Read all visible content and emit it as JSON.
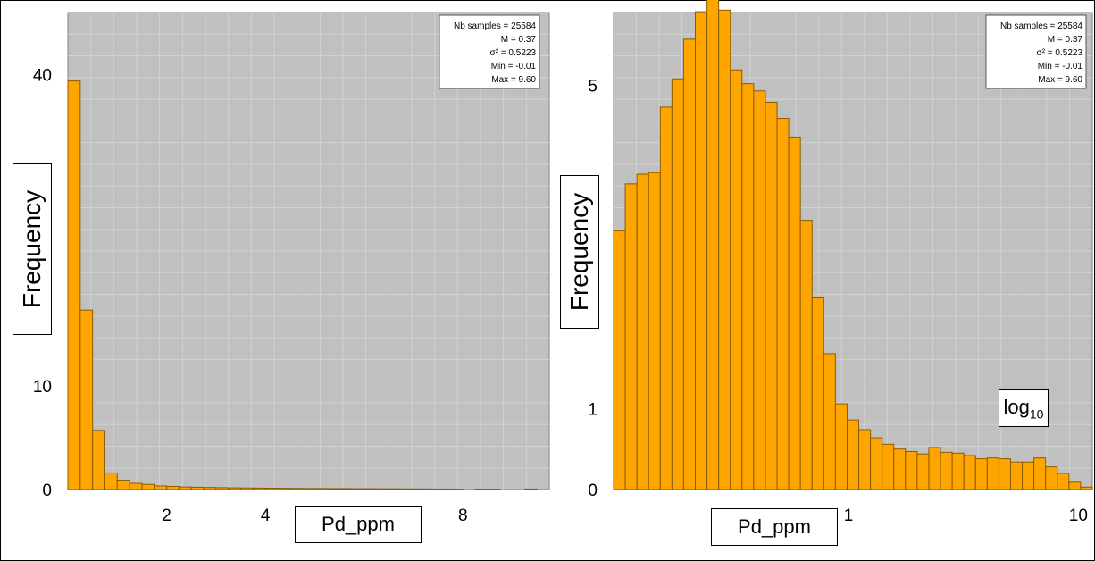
{
  "chart_data": [
    {
      "type": "bar",
      "title": "",
      "xlabel": "Pd_ppm",
      "ylabel": "Frequency",
      "x_scale": "linear",
      "xlim": [
        0,
        9.75
      ],
      "ylim": [
        0,
        46
      ],
      "x_ticks": [
        2,
        4,
        8
      ],
      "y_ticks": [
        0,
        10,
        40
      ],
      "bin_width": 0.25,
      "bin_start": 0,
      "values": [
        39.4,
        17.3,
        5.7,
        1.6,
        0.9,
        0.6,
        0.5,
        0.35,
        0.3,
        0.25,
        0.22,
        0.2,
        0.18,
        0.16,
        0.15,
        0.14,
        0.13,
        0.12,
        0.11,
        0.1,
        0.1,
        0.09,
        0.09,
        0.08,
        0.08,
        0.07,
        0.07,
        0.06,
        0.06,
        0.05,
        0.05,
        0.04,
        0,
        0.04,
        0.04,
        0,
        0,
        0.05,
        0
      ],
      "bar_color": "#ffa500",
      "grid": true,
      "stats": [
        "Nb samples = 25584",
        "M = 0.37",
        "σ² = 0.5223",
        "Min = -0.01",
        "Max = 9.60"
      ],
      "legend_position": "top-right"
    },
    {
      "type": "bar",
      "title": "",
      "xlabel": "Pd_ppm",
      "ylabel": "Frequency",
      "x_scale": "log",
      "scale_label": "log",
      "scale_label_sub": "10",
      "xlim": [
        0.095,
        11.5
      ],
      "ylim": [
        0,
        5.9
      ],
      "x_ticks": [
        1,
        10
      ],
      "y_ticks": [
        0,
        1,
        5
      ],
      "values": [
        3.2,
        3.78,
        3.9,
        3.92,
        4.73,
        5.08,
        5.57,
        5.91,
        6.17,
        5.93,
        5.19,
        5.02,
        4.93,
        4.79,
        4.59,
        4.36,
        3.33,
        2.37,
        1.68,
        1.06,
        0.86,
        0.74,
        0.64,
        0.56,
        0.5,
        0.47,
        0.44,
        0.52,
        0.46,
        0.45,
        0.42,
        0.38,
        0.39,
        0.38,
        0.34,
        0.34,
        0.39,
        0.28,
        0.2,
        0.09,
        0.03
      ],
      "bar_color": "#ffa500",
      "grid": true,
      "stats": [
        "Nb samples = 25584",
        "M = 0.37",
        "σ² = 0.5223",
        "Min = -0.01",
        "Max = 9.60"
      ],
      "legend_position": "top-right"
    }
  ]
}
